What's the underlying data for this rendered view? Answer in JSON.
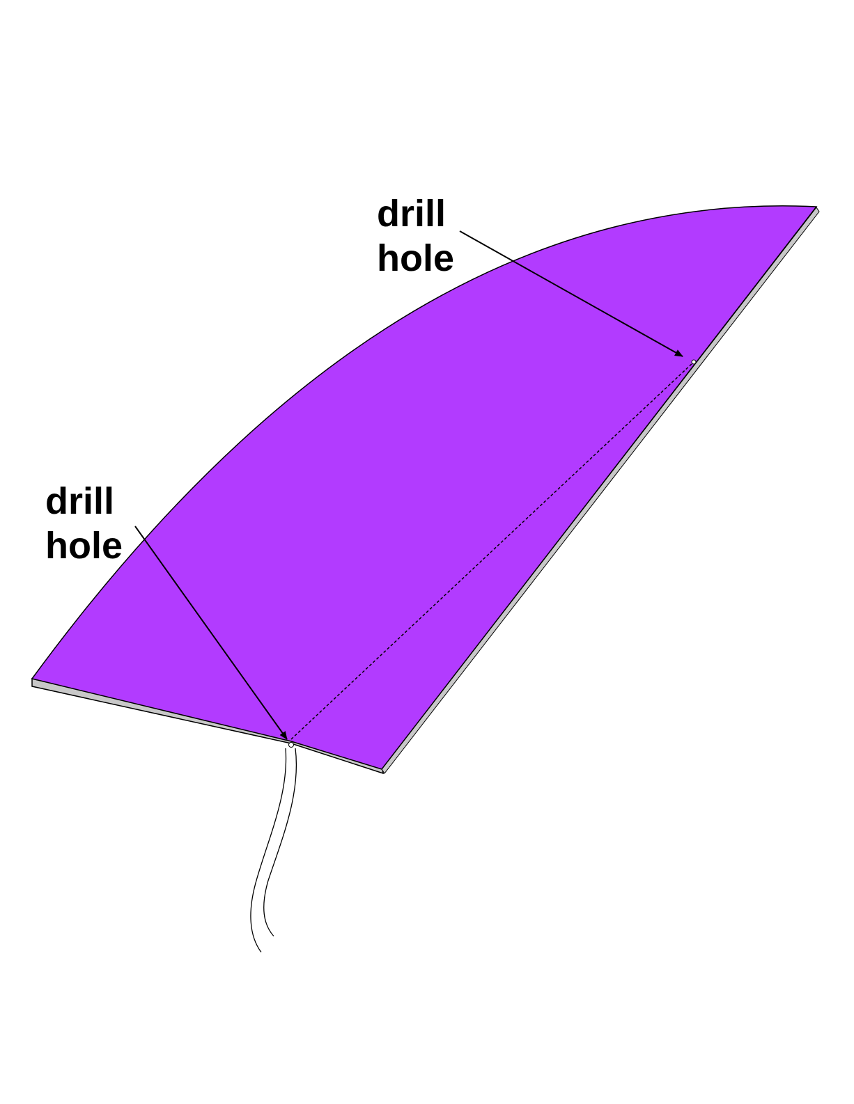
{
  "colors": {
    "fin_face": "#b23bff",
    "fin_edge": "#c8c8c8",
    "line": "#000000",
    "background": "#ffffff"
  },
  "callouts": [
    {
      "line1": "drill",
      "line2": "hole"
    },
    {
      "line1": "drill",
      "line2": "hole"
    }
  ]
}
